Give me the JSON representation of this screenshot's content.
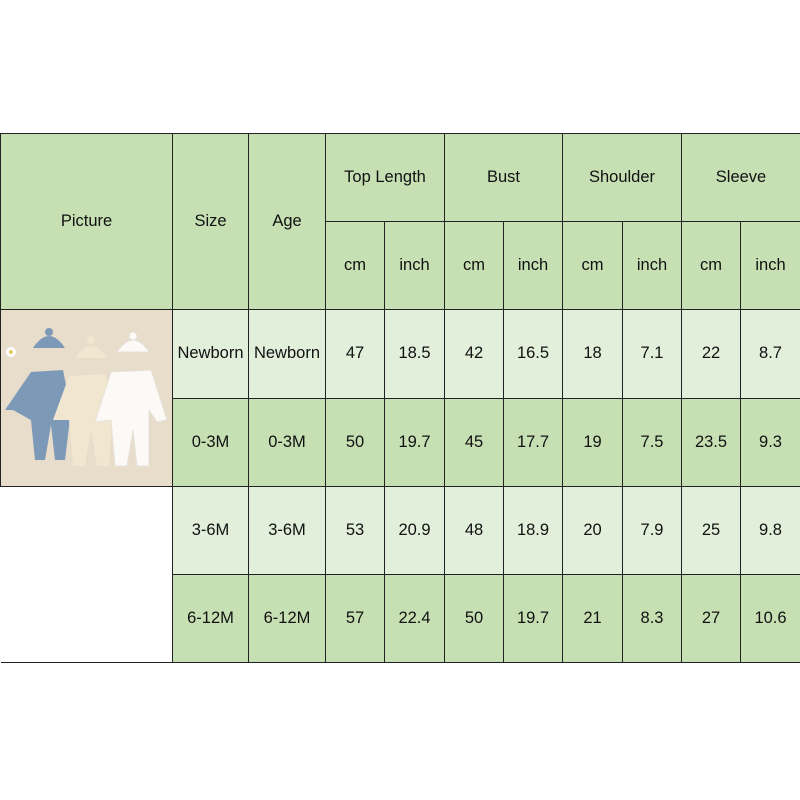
{
  "headers": {
    "picture": "Picture",
    "size": "Size",
    "age": "Age",
    "groups": [
      "Top Length",
      "Bust",
      "Shoulder",
      "Sleeve"
    ],
    "units": [
      "cm",
      "inch",
      "cm",
      "inch",
      "cm",
      "inch",
      "cm",
      "inch"
    ]
  },
  "picture_icon": "baby-rompers-with-hats-photo",
  "colors": {
    "header": "#c6e0b4",
    "row_light": "#e2efda",
    "row_dark": "#c6e0b4"
  },
  "rows": [
    {
      "size": "Newborn",
      "age": "Newborn",
      "values": [
        "47",
        "18.5",
        "42",
        "16.5",
        "18",
        "7.1",
        "22",
        "8.7"
      ]
    },
    {
      "size": "0-3M",
      "age": "0-3M",
      "values": [
        "50",
        "19.7",
        "45",
        "17.7",
        "19",
        "7.5",
        "23.5",
        "9.3"
      ]
    },
    {
      "size": "3-6M",
      "age": "3-6M",
      "values": [
        "53",
        "20.9",
        "48",
        "18.9",
        "20",
        "7.9",
        "25",
        "9.8"
      ]
    },
    {
      "size": "6-12M",
      "age": "6-12M",
      "values": [
        "57",
        "22.4",
        "50",
        "19.7",
        "21",
        "8.3",
        "27",
        "10.6"
      ]
    }
  ]
}
